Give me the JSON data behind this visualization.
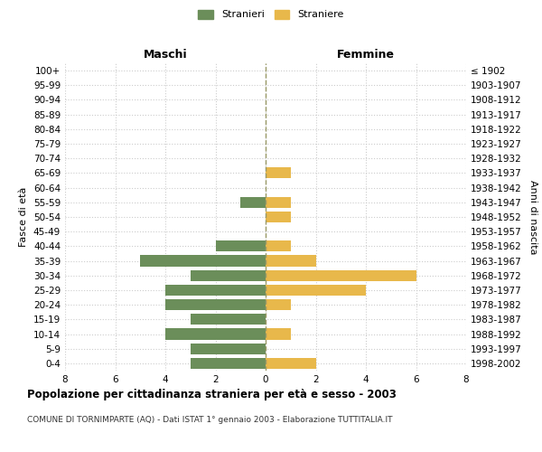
{
  "age_groups": [
    "100+",
    "95-99",
    "90-94",
    "85-89",
    "80-84",
    "75-79",
    "70-74",
    "65-69",
    "60-64",
    "55-59",
    "50-54",
    "45-49",
    "40-44",
    "35-39",
    "30-34",
    "25-29",
    "20-24",
    "15-19",
    "10-14",
    "5-9",
    "0-4"
  ],
  "birth_years": [
    "≤ 1902",
    "1903-1907",
    "1908-1912",
    "1913-1917",
    "1918-1922",
    "1923-1927",
    "1928-1932",
    "1933-1937",
    "1938-1942",
    "1943-1947",
    "1948-1952",
    "1953-1957",
    "1958-1962",
    "1963-1967",
    "1968-1972",
    "1973-1977",
    "1978-1982",
    "1983-1987",
    "1988-1992",
    "1993-1997",
    "1998-2002"
  ],
  "maschi": [
    0,
    0,
    0,
    0,
    0,
    0,
    0,
    0,
    0,
    1,
    0,
    0,
    2,
    5,
    3,
    4,
    4,
    3,
    4,
    3,
    3
  ],
  "femmine": [
    0,
    0,
    0,
    0,
    0,
    0,
    0,
    1,
    0,
    1,
    1,
    0,
    1,
    2,
    6,
    4,
    1,
    0,
    1,
    0,
    2
  ],
  "color_maschi": "#6B8E5A",
  "color_femmine": "#E8B84B",
  "xlim": 8,
  "title": "Popolazione per cittadinanza straniera per età e sesso - 2003",
  "subtitle": "COMUNE DI TORNIMPARTE (AQ) - Dati ISTAT 1° gennaio 2003 - Elaborazione TUTTITALIA.IT",
  "ylabel_left": "Fasce di età",
  "ylabel_right": "Anni di nascita",
  "label_maschi": "Stranieri",
  "label_femmine": "Straniere",
  "header_maschi": "Maschi",
  "header_femmine": "Femmine",
  "bg_color": "#FFFFFF",
  "grid_color": "#CCCCCC"
}
